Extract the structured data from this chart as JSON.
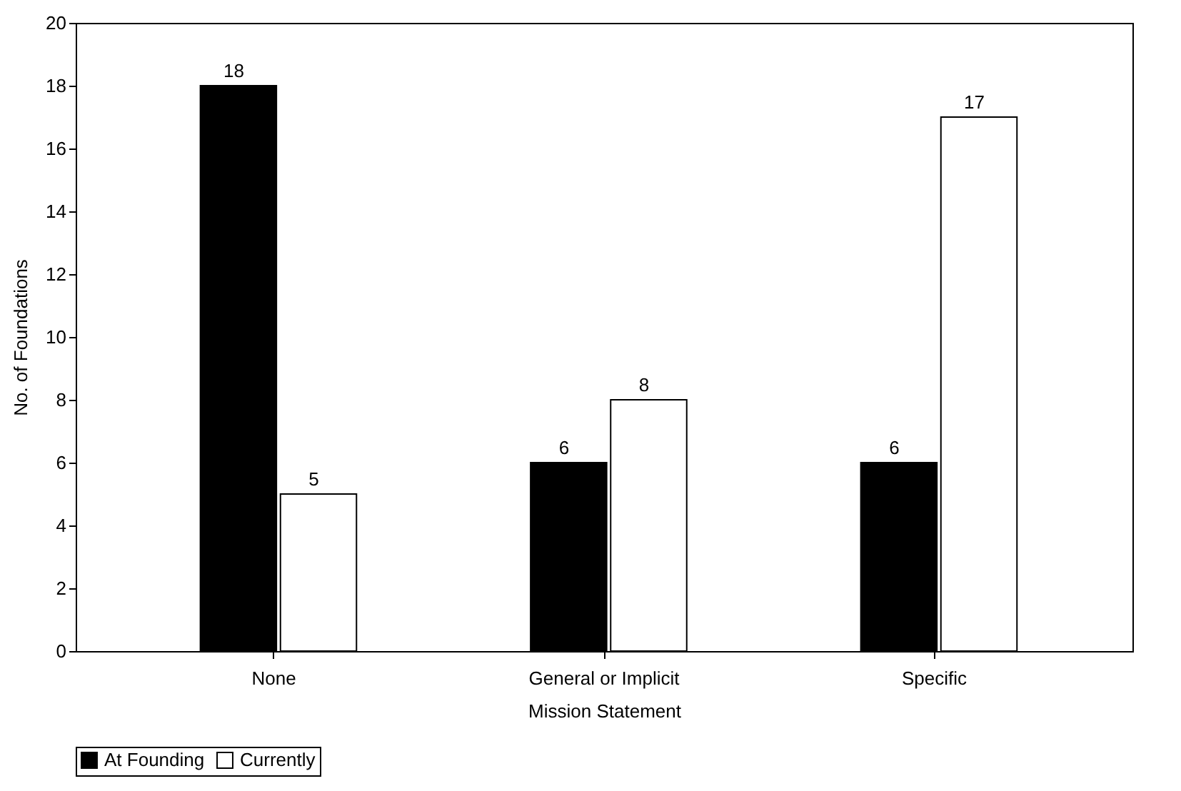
{
  "chart_data": {
    "type": "bar",
    "xlabel": "Mission Statement",
    "ylabel": "No. of Foundations",
    "categories": [
      "None",
      "General or Implicit",
      "Specific"
    ],
    "series": [
      {
        "name": "At Founding",
        "color": "#000000",
        "values": [
          18,
          6,
          6
        ]
      },
      {
        "name": "Currently",
        "color": "#ffffff",
        "values": [
          5,
          8,
          17
        ]
      }
    ],
    "ylim": [
      0,
      20
    ],
    "yticks": [
      0,
      2,
      4,
      6,
      8,
      10,
      12,
      14,
      16,
      18,
      20
    ],
    "grid": false,
    "legend": "bottom",
    "data_labels": true
  }
}
